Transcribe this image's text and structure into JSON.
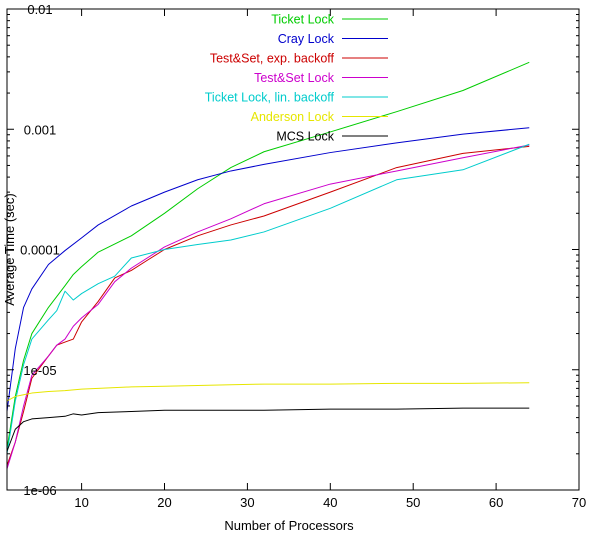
{
  "chart_data": {
    "type": "line",
    "title": "",
    "xlabel": "Number of Processors",
    "ylabel": "Average Time (sec)",
    "xlim": [
      1,
      70
    ],
    "ylim": [
      1e-06,
      0.01
    ],
    "yscale": "log",
    "grid": false,
    "legend_position": "top-right",
    "x_ticks": [
      10,
      20,
      30,
      40,
      50,
      60,
      70
    ],
    "x_tick_labels": [
      "10",
      "20",
      "30",
      "40",
      "50",
      "60",
      "70"
    ],
    "y_ticks": [
      1e-06,
      1e-05,
      0.0001,
      0.001,
      0.01
    ],
    "y_tick_labels": [
      "1e-06",
      "1e-05",
      "0.0001",
      "0.001",
      "0.01"
    ],
    "series": [
      {
        "name": "Ticket Lock",
        "color": "#00cc00",
        "x": [
          1,
          2,
          3,
          4,
          6,
          8,
          9,
          10,
          12,
          16,
          20,
          24,
          28,
          32,
          40,
          48,
          56,
          64
        ],
        "y": [
          2.2e-06,
          6e-06,
          1.2e-05,
          2e-05,
          3.3e-05,
          5e-05,
          6.2e-05,
          7.2e-05,
          9.5e-05,
          0.00013,
          0.0002,
          0.00032,
          0.00048,
          0.00065,
          0.00095,
          0.0014,
          0.0021,
          0.0036
        ]
      },
      {
        "name": "Cray Lock",
        "color": "#0000cc",
        "x": [
          1,
          2,
          3,
          4,
          6,
          8,
          10,
          12,
          16,
          20,
          24,
          28,
          32,
          40,
          48,
          56,
          64
        ],
        "y": [
          4.5e-06,
          1.5e-05,
          3.3e-05,
          4.7e-05,
          7.5e-05,
          9.8e-05,
          0.000125,
          0.00016,
          0.00023,
          0.0003,
          0.00038,
          0.00045,
          0.00051,
          0.00064,
          0.00077,
          0.00091,
          0.00103
        ]
      },
      {
        "name": "Test&Set, exp. backoff",
        "color": "#cc0000",
        "x": [
          1,
          2,
          3,
          4,
          6,
          7,
          8,
          9,
          10,
          12,
          14,
          16,
          18,
          20,
          24,
          28,
          32,
          40,
          48,
          56,
          64
        ],
        "y": [
          1.6e-06,
          2.5e-06,
          4.5e-06,
          8.5e-06,
          1.3e-05,
          1.6e-05,
          1.7e-05,
          1.8e-05,
          2.5e-05,
          3.7e-05,
          5.8e-05,
          6.7e-05,
          8.2e-05,
          0.0001,
          0.00013,
          0.00016,
          0.00019,
          0.0003,
          0.00048,
          0.00063,
          0.00072
        ]
      },
      {
        "name": "Test&Set Lock",
        "color": "#cc00cc",
        "x": [
          1,
          2,
          3,
          4,
          6,
          7,
          8,
          9,
          10,
          12,
          14,
          16,
          20,
          24,
          28,
          32,
          40,
          48,
          56,
          64
        ],
        "y": [
          1.5e-06,
          2.5e-06,
          5e-06,
          9e-06,
          1.3e-05,
          1.6e-05,
          1.8e-05,
          2.3e-05,
          2.7e-05,
          3.5e-05,
          5.4e-05,
          7e-05,
          0.000105,
          0.00014,
          0.00018,
          0.00024,
          0.00035,
          0.00045,
          0.00058,
          0.00074
        ]
      },
      {
        "name": "Ticket Lock, lin. backoff",
        "color": "#00cccc",
        "x": [
          1,
          2,
          3,
          4,
          6,
          7,
          8,
          9,
          10,
          12,
          14,
          16,
          20,
          24,
          28,
          32,
          40,
          48,
          56,
          64
        ],
        "y": [
          2e-06,
          5.5e-06,
          1.1e-05,
          1.8e-05,
          2.6e-05,
          3.1e-05,
          4.5e-05,
          3.8e-05,
          4.3e-05,
          5.2e-05,
          6e-05,
          8.5e-05,
          0.0001,
          0.00011,
          0.00012,
          0.00014,
          0.00022,
          0.00038,
          0.00046,
          0.00075
        ]
      },
      {
        "name": "Anderson Lock",
        "color": "#e6e600",
        "x": [
          1,
          2,
          3,
          4,
          6,
          8,
          10,
          12,
          16,
          20,
          24,
          28,
          32,
          40,
          48,
          56,
          64
        ],
        "y": [
          5.5e-06,
          6e-06,
          6.2e-06,
          6.4e-06,
          6.6e-06,
          6.7e-06,
          6.9e-06,
          7e-06,
          7.2e-06,
          7.3e-06,
          7.4e-06,
          7.5e-06,
          7.6e-06,
          7.6e-06,
          7.7e-06,
          7.7e-06,
          7.8e-06
        ]
      },
      {
        "name": "MCS Lock",
        "color": "#000000",
        "x": [
          1,
          2,
          3,
          4,
          6,
          8,
          9,
          10,
          12,
          16,
          20,
          24,
          28,
          32,
          40,
          48,
          56,
          64
        ],
        "y": [
          2.1e-06,
          3.2e-06,
          3.7e-06,
          3.9e-06,
          4e-06,
          4.1e-06,
          4.3e-06,
          4.2e-06,
          4.4e-06,
          4.5e-06,
          4.6e-06,
          4.6e-06,
          4.6e-06,
          4.6e-06,
          4.7e-06,
          4.7e-06,
          4.8e-06,
          4.8e-06
        ]
      }
    ]
  }
}
